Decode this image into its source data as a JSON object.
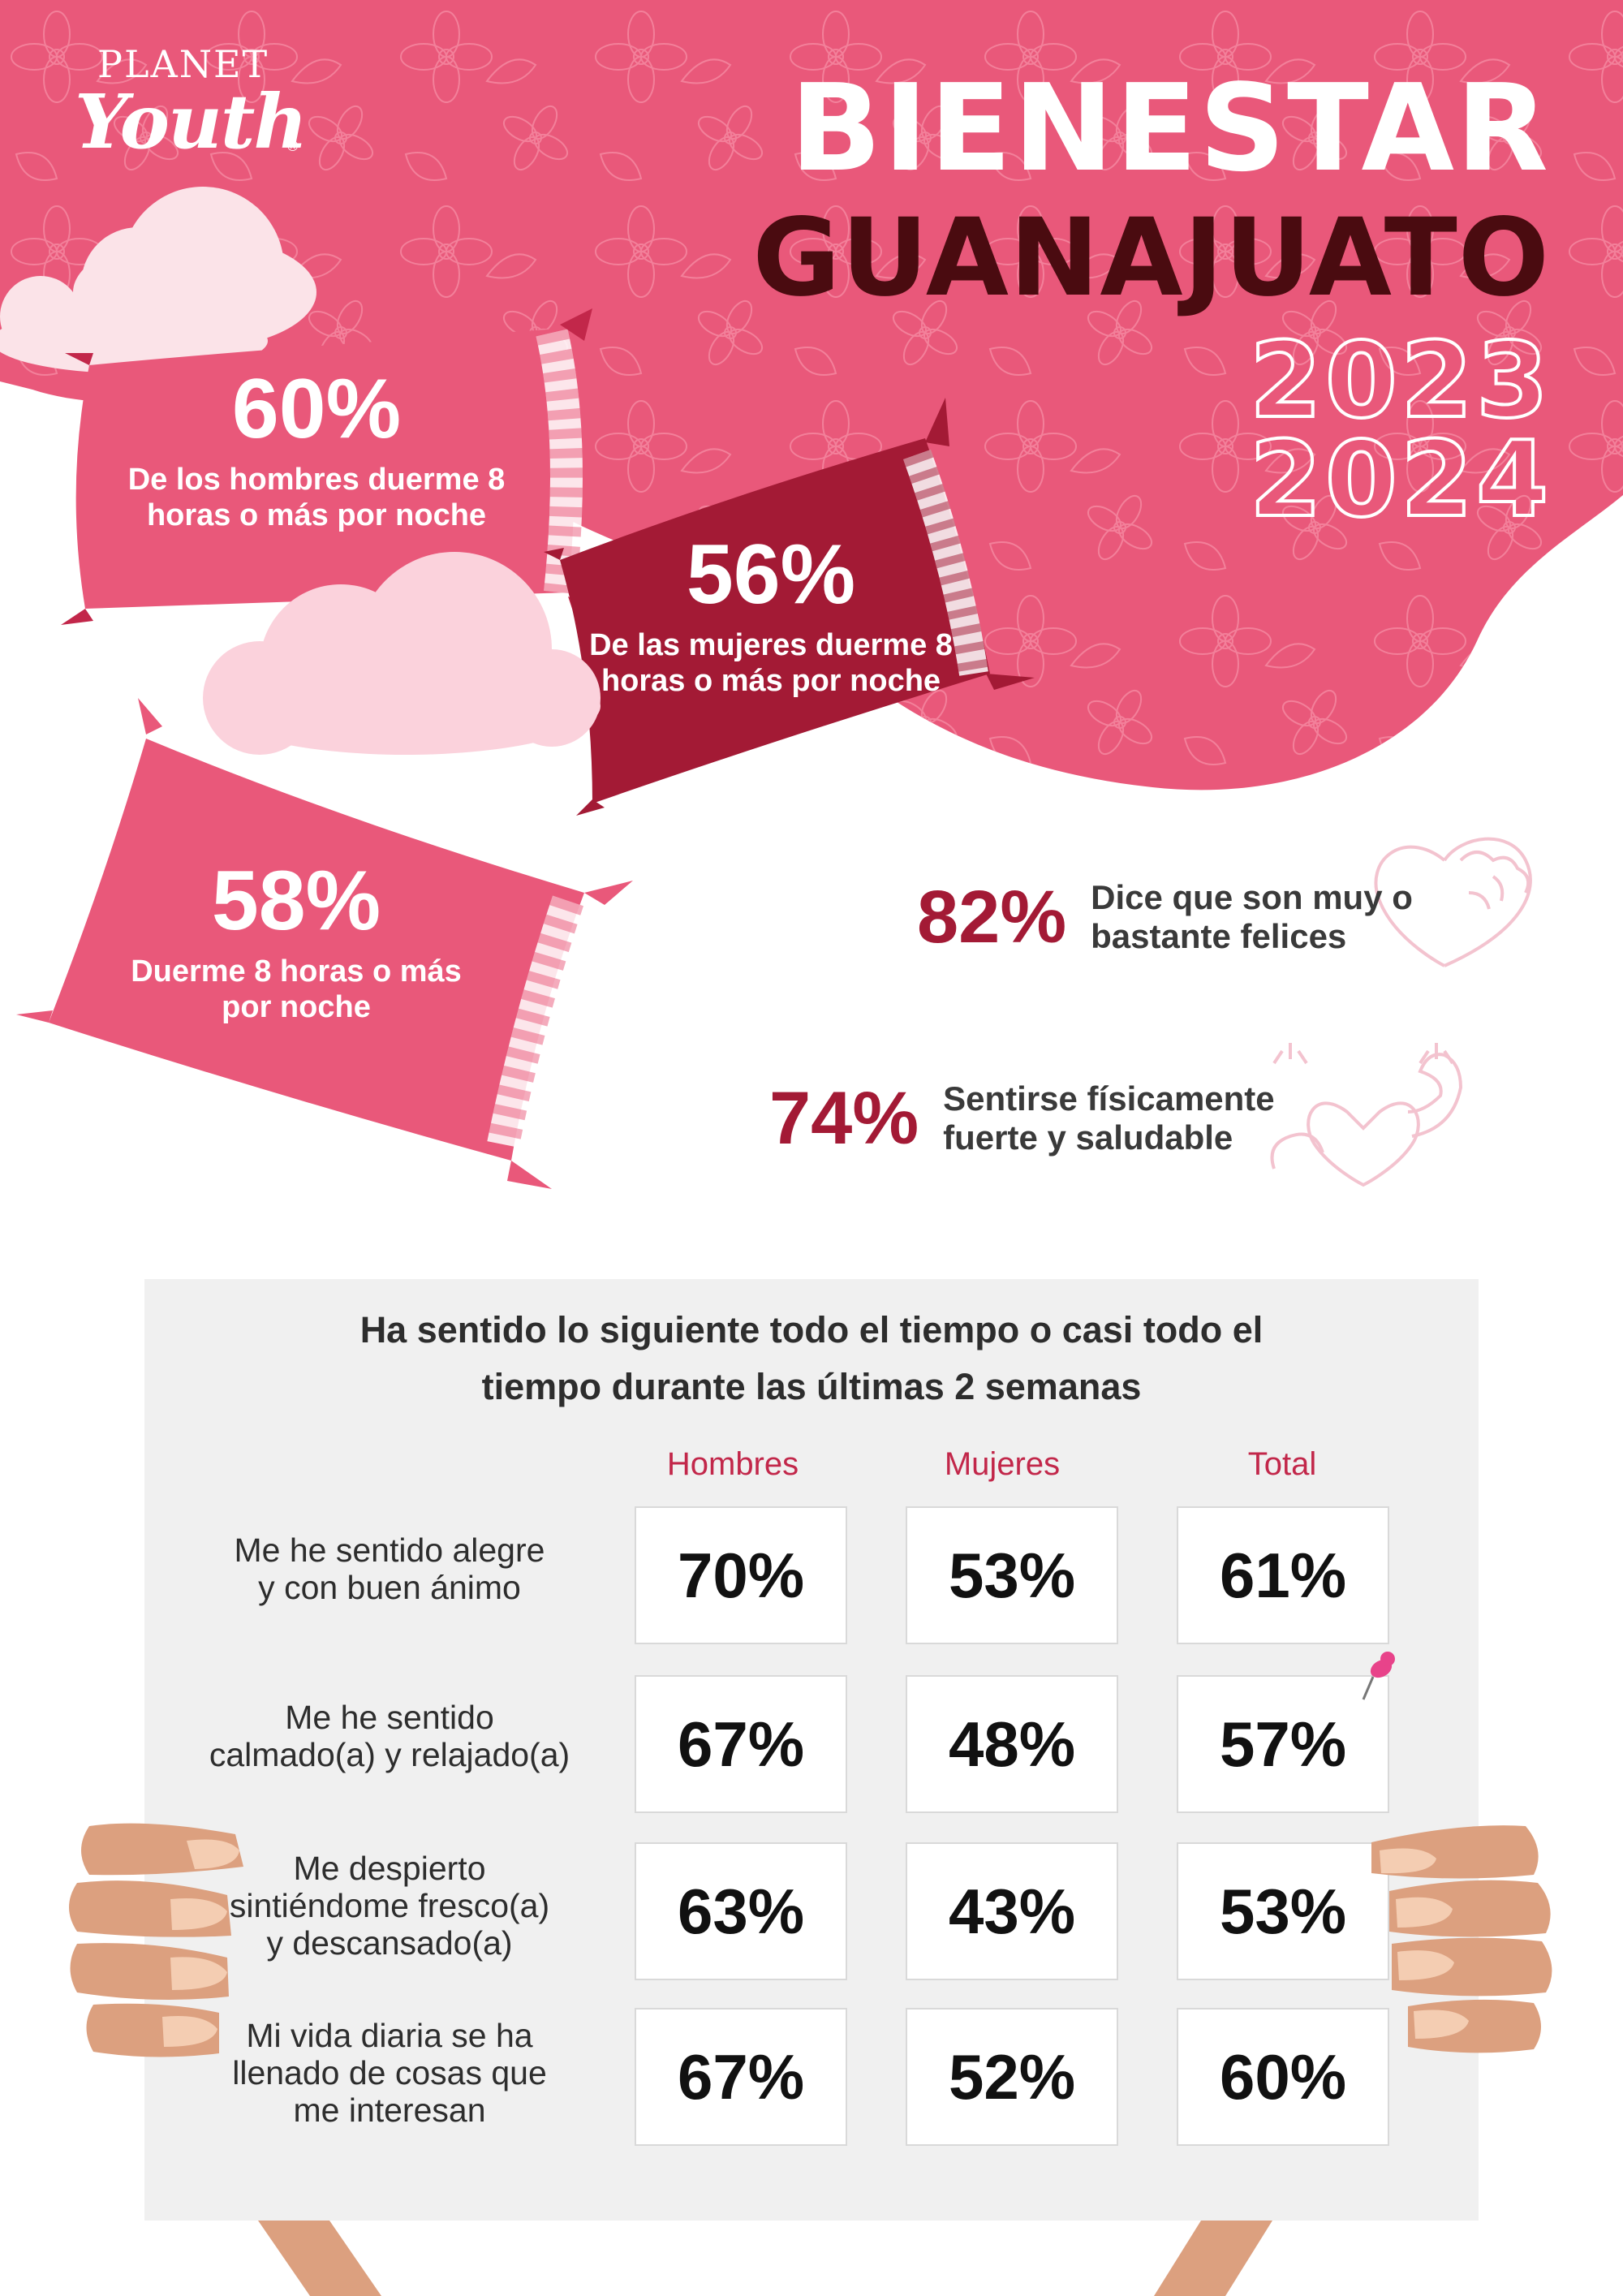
{
  "logo": {
    "line1": "PLANET",
    "line2": "Youth",
    "registered": "®"
  },
  "title": {
    "line1": "BIENESTAR",
    "line2": "GUANAJUATO",
    "year1": "2023",
    "year2": "2024"
  },
  "pillows": [
    {
      "percent": "60%",
      "description": "De los hombres duerme 8 horas o más por noche"
    },
    {
      "percent": "56%",
      "description": "De las mujeres duerme 8 horas o más por noche"
    },
    {
      "percent": "58%",
      "description": "Duerme 8 horas o más por noche"
    }
  ],
  "stats": [
    {
      "percent": "82%",
      "label_line1": "Dice que son muy o",
      "label_line2": "bastante felices",
      "icon": "heart-brain-icon"
    },
    {
      "percent": "74%",
      "label_line1": "Sentirse físicamente",
      "label_line2": "fuerte y saludable",
      "icon": "heart-muscle-icon"
    }
  ],
  "board": {
    "heading_line1": "Ha sentido lo siguiente todo el tiempo o casi todo el",
    "heading_line2": "tiempo durante las últimas 2 semanas",
    "columns": [
      "Hombres",
      "Mujeres",
      "Total"
    ],
    "rows": [
      {
        "label": [
          "Me he sentido alegre",
          "y con buen ánimo"
        ],
        "values": [
          "70%",
          "53%",
          "61%"
        ]
      },
      {
        "label": [
          "Me he sentido",
          "calmado(a) y relajado(a)"
        ],
        "values": [
          "67%",
          "48%",
          "57%"
        ]
      },
      {
        "label": [
          "Me despierto",
          "sintiéndome fresco(a)",
          "y descansado(a)"
        ],
        "values": [
          "63%",
          "43%",
          "53%"
        ]
      },
      {
        "label": [
          "Mi vida diaria se ha",
          "llenado de cosas que",
          "me interesan"
        ],
        "values": [
          "67%",
          "52%",
          "60%"
        ]
      }
    ]
  },
  "colors": {
    "blob": "#e9587a",
    "pillow_light": "#e9587a",
    "pillow_dark": "#a31a35",
    "accent_text": "#a31a35",
    "column_header": "#c2274a",
    "title_dark": "#4a0b10",
    "board_bg": "#f0f0f0",
    "skin": "#dca07f"
  }
}
